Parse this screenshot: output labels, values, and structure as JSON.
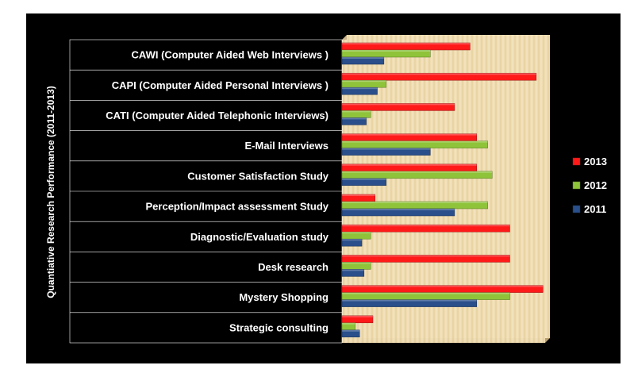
{
  "chart_data": {
    "type": "bar",
    "orientation": "horizontal",
    "ylabel": "Quantiative Research Performance (2011-2013)",
    "xlabel": "",
    "title": "",
    "categories": [
      "CAWI (Computer Aided Web Interviews )",
      "CAPI  (Computer Aided Personal Interviews  )",
      "CATI  (Computer Aided Telephonic Interviews)",
      "E-Mail Interviews",
      "Customer Satisfaction Study",
      "Perception/Impact assessment  Study",
      "Diagnostic/Evaluation study",
      "Desk research",
      "Mystery Shopping",
      "Strategic consulting"
    ],
    "series": [
      {
        "name": "2013",
        "color": "#ff1a1a",
        "values": [
          58,
          88,
          51,
          61,
          61,
          15,
          76,
          76,
          91,
          14
        ]
      },
      {
        "name": "2012",
        "color": "#8fc43a",
        "values": [
          40,
          20,
          13,
          66,
          68,
          66,
          13,
          13,
          76,
          6
        ]
      },
      {
        "name": "2011",
        "color": "#2a4f8a",
        "values": [
          19,
          16,
          11,
          40,
          20,
          51,
          9,
          10,
          61,
          8
        ]
      }
    ],
    "xlim": [
      0,
      92
    ],
    "grid": false,
    "legend_position": "right",
    "colors": {
      "background": "#000000",
      "plot_area": "#efdcb1",
      "label_panel": "#000000"
    }
  }
}
